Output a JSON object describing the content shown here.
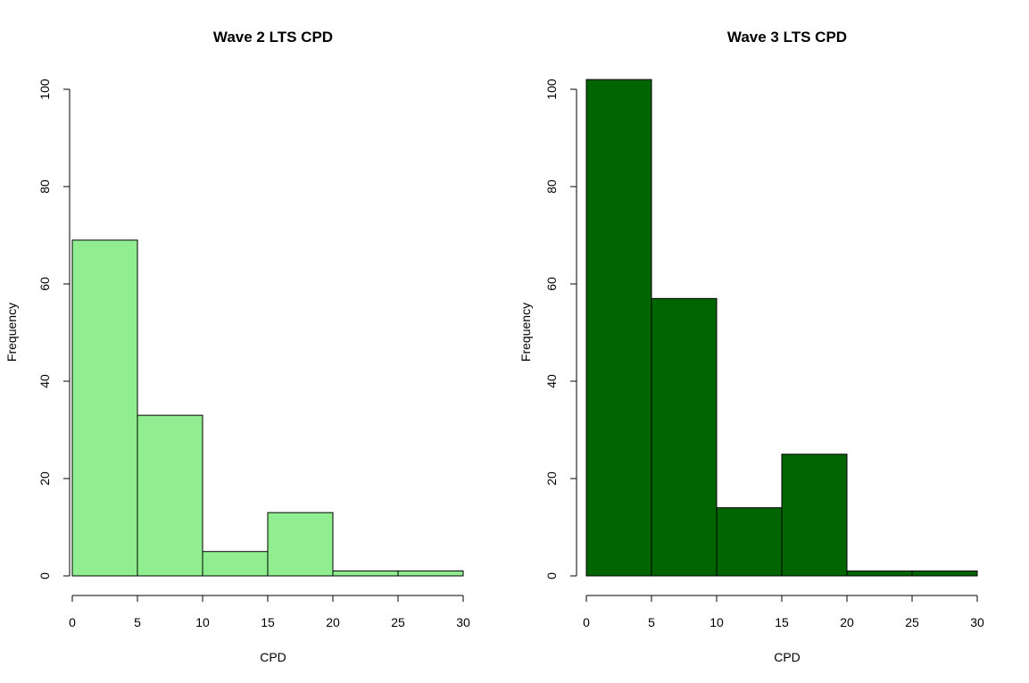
{
  "chart_data": [
    {
      "type": "bar",
      "subtype": "histogram",
      "title": "Wave 2 LTS CPD",
      "xlabel": "CPD",
      "ylabel": "Frequency",
      "bins": [
        [
          0,
          5
        ],
        [
          5,
          10
        ],
        [
          10,
          15
        ],
        [
          15,
          20
        ],
        [
          20,
          25
        ],
        [
          25,
          30
        ]
      ],
      "values": [
        69,
        33,
        5,
        13,
        1,
        1
      ],
      "xlim": [
        0,
        30
      ],
      "ylim": [
        0,
        100
      ],
      "x_ticks": [
        0,
        5,
        10,
        15,
        20,
        25,
        30
      ],
      "y_ticks": [
        0,
        20,
        40,
        60,
        80,
        100
      ],
      "fill_color": "#90EE90",
      "border_color": "#000000",
      "grid": false
    },
    {
      "type": "bar",
      "subtype": "histogram",
      "title": "Wave 3 LTS CPD",
      "xlabel": "CPD",
      "ylabel": "Frequency",
      "bins": [
        [
          0,
          5
        ],
        [
          5,
          10
        ],
        [
          10,
          15
        ],
        [
          15,
          20
        ],
        [
          20,
          25
        ],
        [
          25,
          30
        ]
      ],
      "values": [
        102,
        57,
        14,
        25,
        1,
        1
      ],
      "xlim": [
        0,
        30
      ],
      "ylim": [
        0,
        100
      ],
      "x_ticks": [
        0,
        5,
        10,
        15,
        20,
        25,
        30
      ],
      "y_ticks": [
        0,
        20,
        40,
        60,
        80,
        100
      ],
      "fill_color": "#006400",
      "border_color": "#000000",
      "grid": false
    }
  ]
}
